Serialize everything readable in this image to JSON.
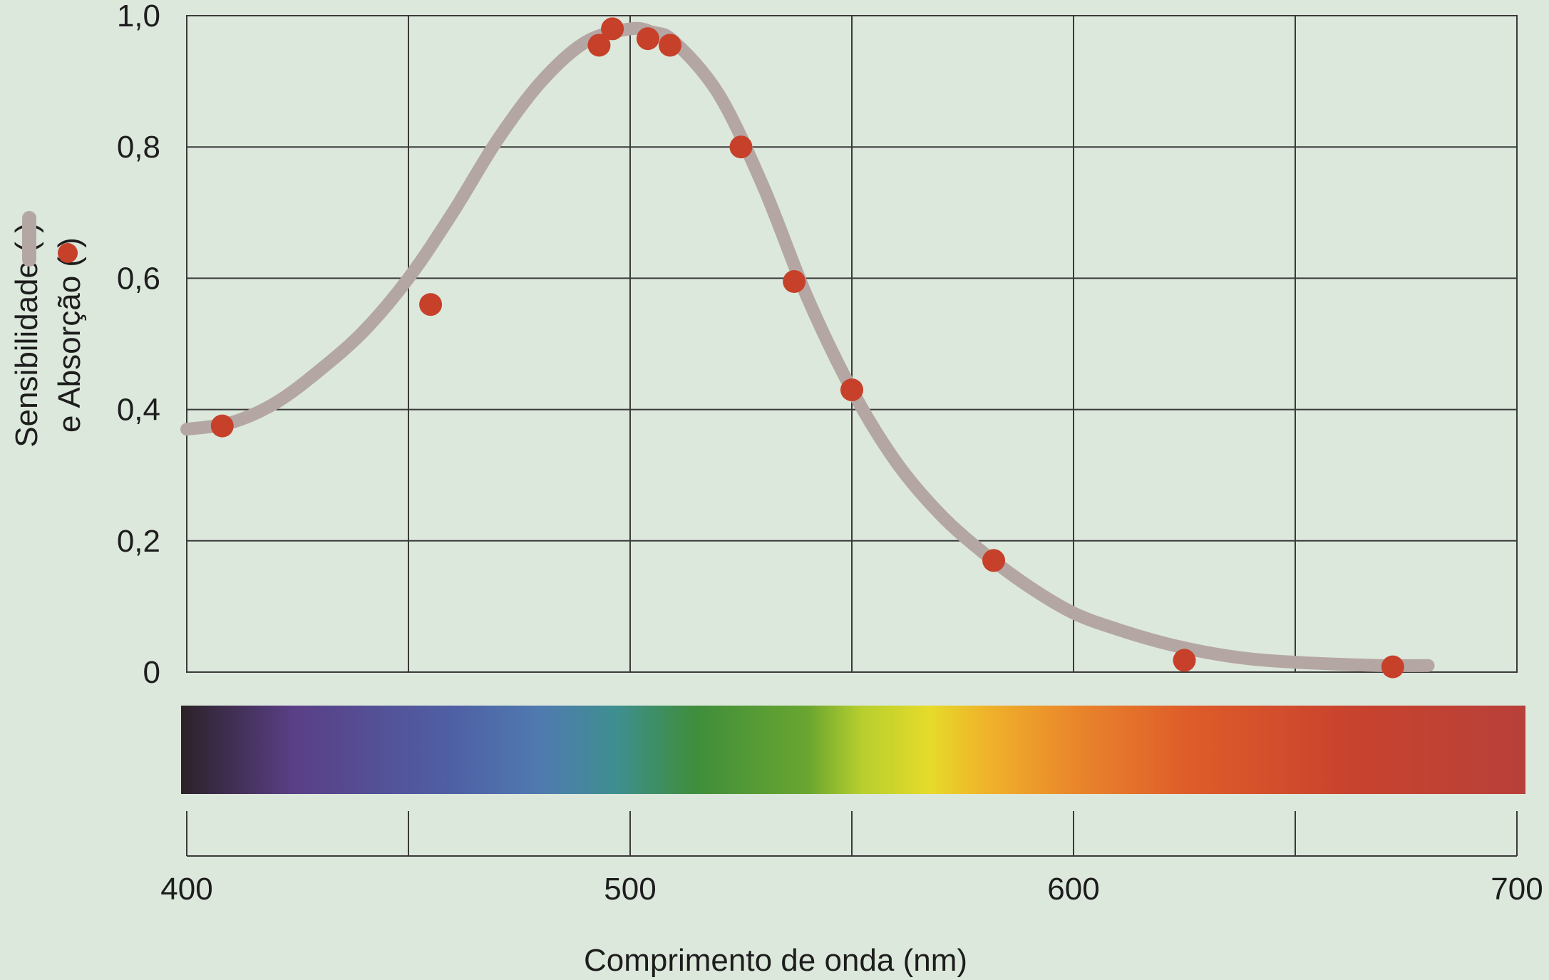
{
  "chart_data": {
    "type": "line",
    "xlabel": "Comprimento de onda (nm)",
    "ylabel_line1_prefix": "Sensibilidade (",
    "ylabel_line1_suffix": ")",
    "ylabel_line2_prefix": "e Absorção (",
    "ylabel_line2_suffix": ")",
    "xlim": [
      400,
      700
    ],
    "ylim": [
      0,
      1.0
    ],
    "grid": true,
    "x_tick_labels": [
      "400",
      "500",
      "600",
      "700"
    ],
    "y_tick_labels": [
      "0",
      "0,2",
      "0,4",
      "0,6",
      "0,8",
      "1,0"
    ],
    "y_tick_values": [
      0,
      0.2,
      0.4,
      0.6,
      0.8,
      1.0
    ],
    "series": [
      {
        "kind": "line",
        "color": "#b4a7a3",
        "x": [
          400,
          410,
          420,
          430,
          440,
          450,
          460,
          470,
          480,
          490,
          500,
          505,
          510,
          520,
          530,
          540,
          550,
          560,
          570,
          580,
          590,
          600,
          610,
          620,
          630,
          640,
          650,
          660,
          670,
          680
        ],
        "y": [
          0.37,
          0.38,
          0.41,
          0.46,
          0.52,
          0.6,
          0.7,
          0.81,
          0.9,
          0.96,
          0.98,
          0.975,
          0.96,
          0.88,
          0.74,
          0.57,
          0.43,
          0.32,
          0.24,
          0.18,
          0.13,
          0.09,
          0.065,
          0.045,
          0.03,
          0.02,
          0.015,
          0.012,
          0.01,
          0.01
        ]
      },
      {
        "kind": "scatter",
        "color": "#c6402a",
        "x": [
          408,
          455,
          493,
          496,
          504,
          509,
          525,
          537,
          550,
          582,
          625,
          672
        ],
        "y": [
          0.375,
          0.56,
          0.955,
          0.98,
          0.965,
          0.955,
          0.8,
          0.595,
          0.43,
          0.17,
          0.018,
          0.008
        ]
      }
    ],
    "spectrum": {
      "x_range": [
        400,
        700
      ],
      "stops": [
        {
          "nm": 400,
          "color": "#2b2228"
        },
        {
          "nm": 425,
          "color": "#5a3f86"
        },
        {
          "nm": 460,
          "color": "#4f5fa4"
        },
        {
          "nm": 480,
          "color": "#4f7ab0"
        },
        {
          "nm": 497,
          "color": "#3e8f90"
        },
        {
          "nm": 515,
          "color": "#3f8e3b"
        },
        {
          "nm": 540,
          "color": "#6aa630"
        },
        {
          "nm": 552,
          "color": "#b7cf2e"
        },
        {
          "nm": 567,
          "color": "#e6db2a"
        },
        {
          "nm": 580,
          "color": "#f0b22a"
        },
        {
          "nm": 600,
          "color": "#e9852b"
        },
        {
          "nm": 625,
          "color": "#de5c2a"
        },
        {
          "nm": 660,
          "color": "#c9432d"
        },
        {
          "nm": 700,
          "color": "#b8403a"
        }
      ]
    }
  }
}
